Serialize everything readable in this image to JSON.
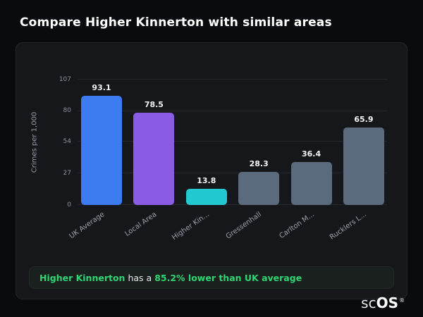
{
  "page": {
    "title": "Compare Higher Kinnerton with similar areas"
  },
  "chart_data": {
    "type": "bar",
    "title": "",
    "xlabel": "",
    "ylabel": "Crimes per 1,000",
    "ylim": [
      0,
      107
    ],
    "yticks": [
      107,
      80,
      54,
      27,
      0
    ],
    "grid": true,
    "categories": [
      "UK Average",
      "Local Area",
      "Higher Kin...",
      "Gressenhall",
      "Carlton M...",
      "Rucklers L..."
    ],
    "values": [
      93.1,
      78.5,
      13.8,
      28.3,
      36.4,
      65.9
    ],
    "value_labels": [
      "93.1",
      "78.5",
      "13.8",
      "28.3",
      "36.4",
      "65.9"
    ],
    "bar_colors": [
      "#3d7bf0",
      "#8a5ce6",
      "#22c9ce",
      "#5b6b7d",
      "#5b6b7d",
      "#5b6b7d"
    ]
  },
  "callout": {
    "highlight": "Higher Kinnerton",
    "middle": "has a",
    "stat": "85.2% lower than UK average"
  },
  "logo": {
    "sc": "sc",
    "os": "OS",
    "reg": "®"
  },
  "colors": {
    "accent_blue": "#3d7bf0",
    "accent_purple": "#8a5ce6",
    "accent_teal": "#22c9ce",
    "bar_gray": "#5b6b7d",
    "callout_green": "#2fd573",
    "card_bg": "#15171b",
    "page_bg": "#0a0b0e"
  }
}
